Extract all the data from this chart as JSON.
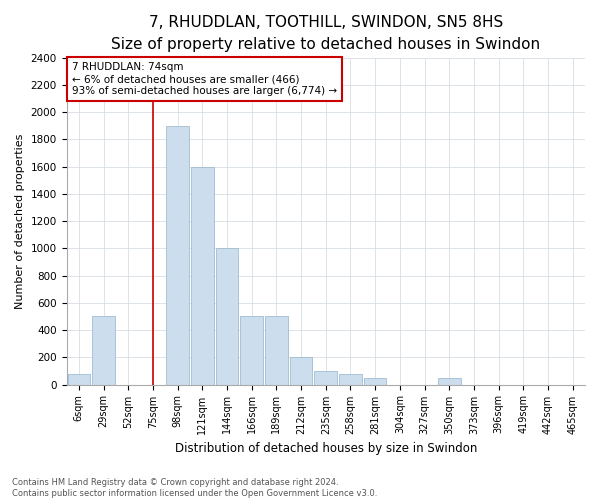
{
  "title": "7, RHUDDLAN, TOOTHILL, SWINDON, SN5 8HS",
  "subtitle": "Size of property relative to detached houses in Swindon",
  "xlabel": "Distribution of detached houses by size in Swindon",
  "ylabel": "Number of detached properties",
  "categories": [
    "6sqm",
    "29sqm",
    "52sqm",
    "75sqm",
    "98sqm",
    "121sqm",
    "144sqm",
    "166sqm",
    "189sqm",
    "212sqm",
    "235sqm",
    "258sqm",
    "281sqm",
    "304sqm",
    "327sqm",
    "350sqm",
    "373sqm",
    "396sqm",
    "419sqm",
    "442sqm",
    "465sqm"
  ],
  "bar_values": [
    75,
    500,
    0,
    0,
    1900,
    1600,
    1000,
    500,
    500,
    200,
    100,
    75,
    50,
    0,
    0,
    50,
    0,
    0,
    0,
    0,
    0
  ],
  "bar_color": "#ccdded",
  "bar_edge_color": "#a0bdd0",
  "vline_x_index": 3,
  "vline_color": "#cc0000",
  "annotation_text": "7 RHUDDLAN: 74sqm\n← 6% of detached houses are smaller (466)\n93% of semi-detached houses are larger (6,774) →",
  "annotation_box_color": "#ffffff",
  "annotation_box_edge": "#cc0000",
  "ylim": [
    0,
    2400
  ],
  "yticks": [
    0,
    200,
    400,
    600,
    800,
    1000,
    1200,
    1400,
    1600,
    1800,
    2000,
    2200,
    2400
  ],
  "footer_text": "Contains HM Land Registry data © Crown copyright and database right 2024.\nContains public sector information licensed under the Open Government Licence v3.0.",
  "title_fontsize": 11,
  "subtitle_fontsize": 9.5,
  "grid_color": "#d0d8e0",
  "background_color": "#ffffff"
}
